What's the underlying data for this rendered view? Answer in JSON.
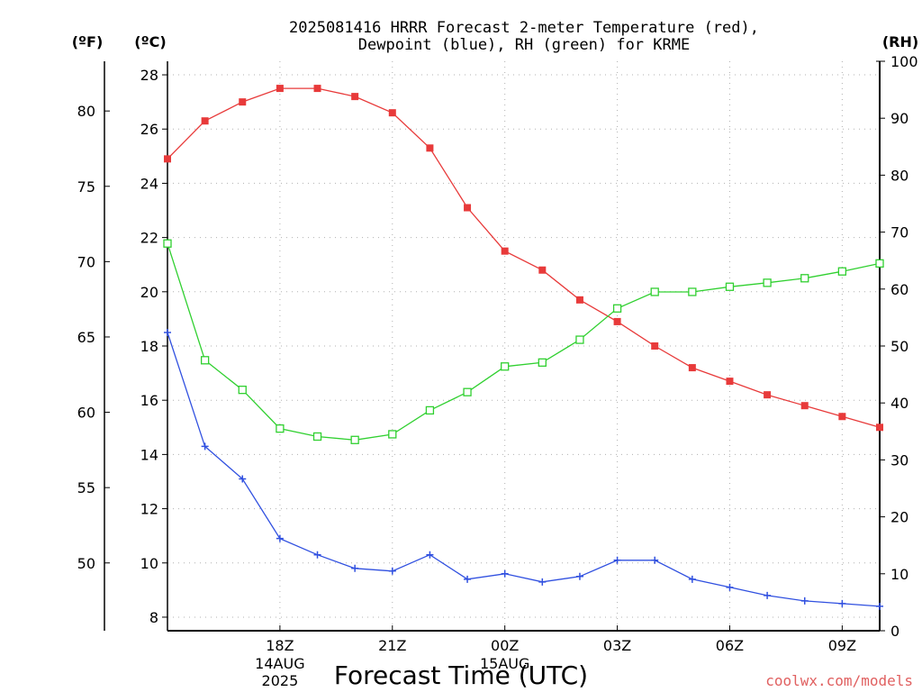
{
  "chart_data": {
    "type": "line",
    "title": "2025081416 HRRR Forecast 2-meter Temperature (red),",
    "subtitle": "Dewpoint (blue), RH (green) for KRME",
    "xlabel": "Forecast Time (UTC)",
    "x": [
      "15Z",
      "16Z",
      "17Z",
      "18Z",
      "19Z",
      "20Z",
      "21Z",
      "22Z",
      "23Z",
      "00Z",
      "01Z",
      "02Z",
      "03Z",
      "04Z",
      "05Z",
      "06Z",
      "07Z",
      "08Z",
      "09Z",
      "10Z"
    ],
    "x_ticks": [
      {
        "label": "18Z",
        "sub1": "14AUG",
        "sub2": "2025",
        "at": "18Z"
      },
      {
        "label": "21Z",
        "sub1": "",
        "sub2": "",
        "at": "21Z"
      },
      {
        "label": "00Z",
        "sub1": "15AUG",
        "sub2": "",
        "at": "00Z"
      },
      {
        "label": "03Z",
        "sub1": "",
        "sub2": "",
        "at": "03Z"
      },
      {
        "label": "06Z",
        "sub1": "",
        "sub2": "",
        "at": "06Z"
      },
      {
        "label": "09Z",
        "sub1": "",
        "sub2": "",
        "at": "09Z"
      }
    ],
    "axes": {
      "fahrenheit": {
        "unit_label": "(ºF)",
        "ticks": [
          50,
          55,
          60,
          65,
          70,
          75,
          80
        ]
      },
      "celsius": {
        "unit_label": "(ºC)",
        "ylim": [
          7.5,
          28.5
        ],
        "ticks": [
          8,
          10,
          12,
          14,
          16,
          18,
          20,
          22,
          24,
          26,
          28
        ]
      },
      "rh": {
        "unit_label": "(RH)",
        "ylim": [
          0,
          100
        ],
        "ticks": [
          0,
          10,
          20,
          30,
          40,
          50,
          60,
          70,
          80,
          90,
          100
        ]
      }
    },
    "series": [
      {
        "key": "temperature",
        "axis": "celsius",
        "color": "#e83a3a",
        "marker": "filled-square",
        "values": [
          24.9,
          26.3,
          27.0,
          27.5,
          27.5,
          27.2,
          26.6,
          25.3,
          23.1,
          21.5,
          20.8,
          19.7,
          18.9,
          18.0,
          17.2,
          16.7,
          16.2,
          15.8,
          15.4,
          15.0
        ]
      },
      {
        "key": "dewpoint",
        "axis": "celsius",
        "color": "#3050e0",
        "marker": "plus",
        "values": [
          18.5,
          14.3,
          13.1,
          10.9,
          10.3,
          9.8,
          9.7,
          10.3,
          9.4,
          9.6,
          9.3,
          9.5,
          10.1,
          10.1,
          9.4,
          9.1,
          8.8,
          8.6,
          8.5,
          8.4
        ]
      },
      {
        "key": "rh",
        "axis": "rh",
        "color": "#30d030",
        "marker": "open-square",
        "values": [
          68,
          47.5,
          42.3,
          35.5,
          34.1,
          33.5,
          34.5,
          38.7,
          41.9,
          46.4,
          47.1,
          51.1,
          56.6,
          59.5,
          59.5,
          60.4,
          61.1,
          61.9,
          63.1,
          64.5
        ]
      }
    ],
    "grid": true,
    "watermark": "coolwx.com/models"
  }
}
